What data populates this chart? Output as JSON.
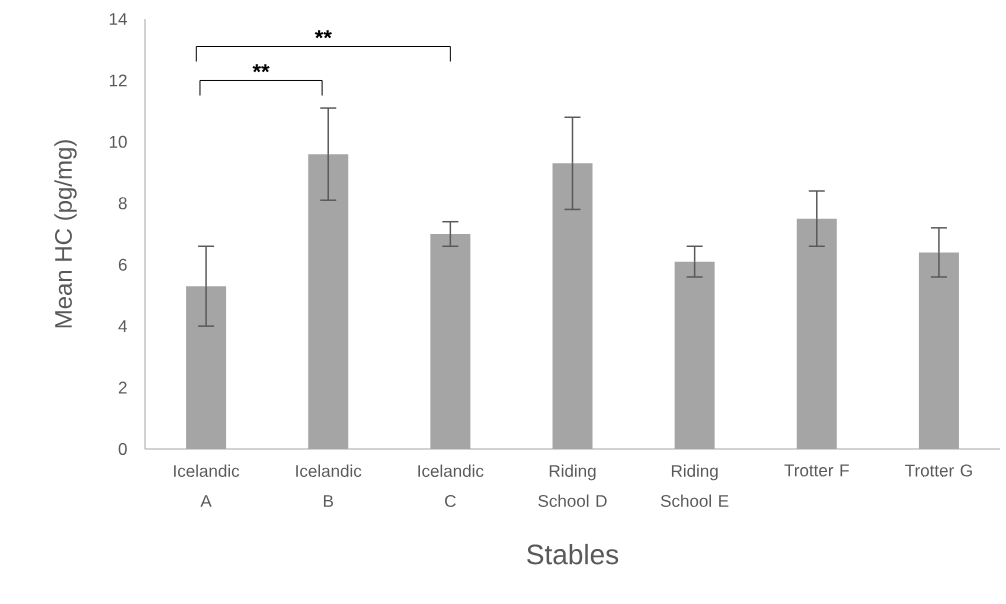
{
  "chart_data": {
    "type": "bar",
    "xlabel": "Stables",
    "ylabel": "Mean HC (pg/mg)",
    "categories": [
      "Icelandic A",
      "Icelandic B",
      "Icelandic C",
      "Riding School D",
      "Riding School E",
      "Trotter F",
      "Trotter G"
    ],
    "values": [
      5.3,
      9.6,
      7.0,
      9.3,
      6.1,
      7.5,
      6.4
    ],
    "errors": [
      1.3,
      1.5,
      0.4,
      1.5,
      0.5,
      0.9,
      0.8
    ],
    "color": "#a5a5a5",
    "ylim": [
      0,
      14
    ],
    "yticks": [
      0,
      2,
      4,
      6,
      8,
      10,
      12,
      14
    ],
    "grid": false,
    "annotations": [
      "**",
      "**"
    ]
  }
}
